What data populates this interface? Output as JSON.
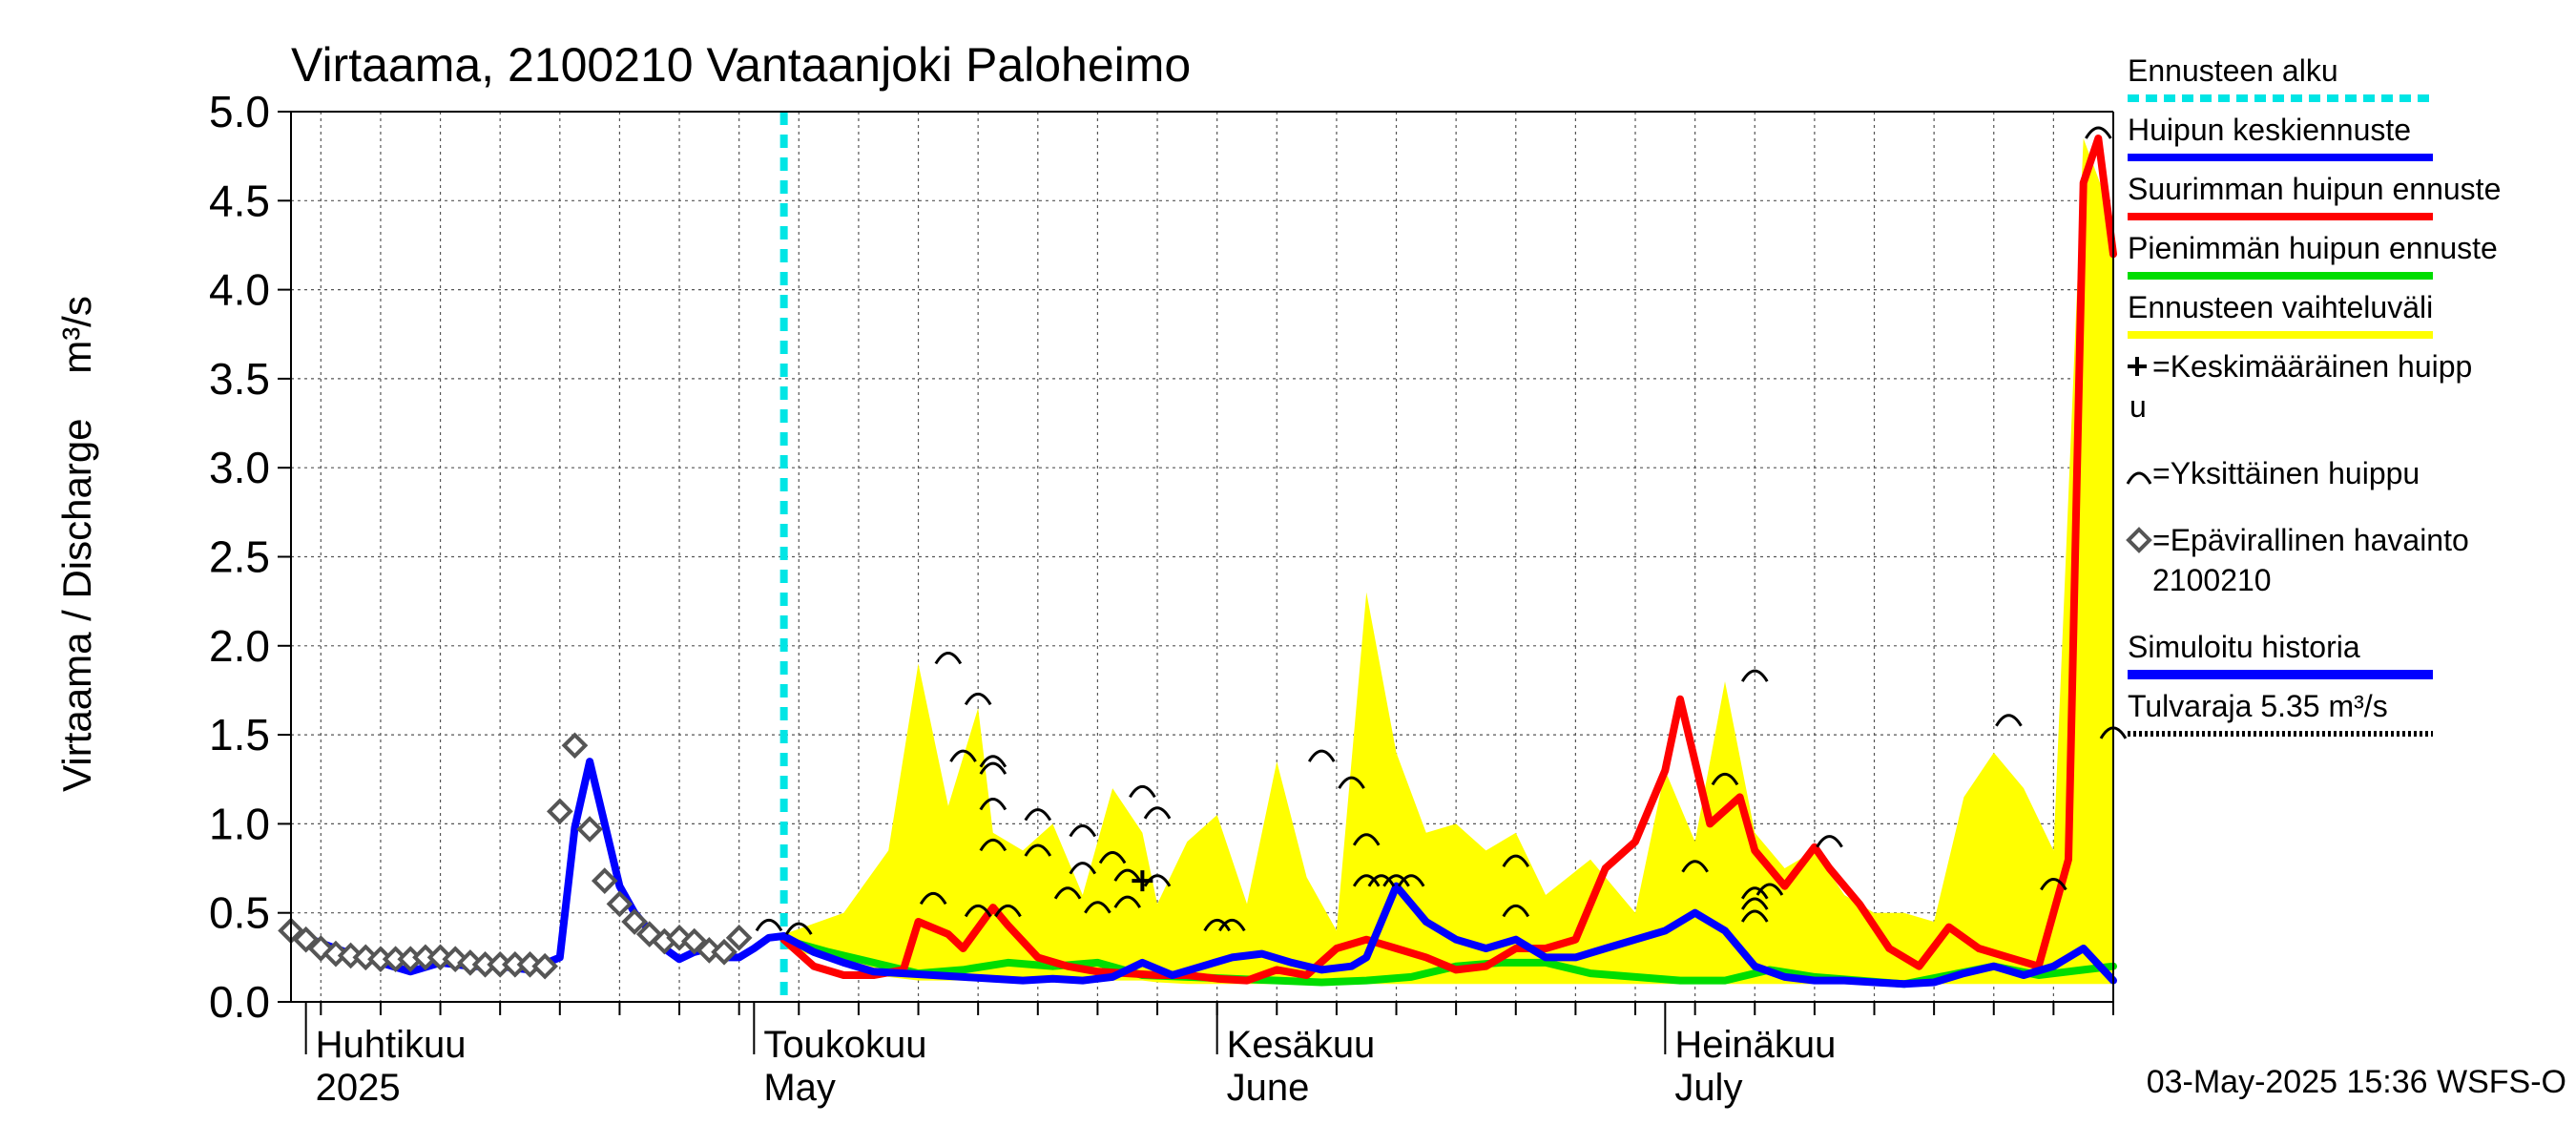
{
  "chart_data": {
    "type": "line",
    "title": "Virtaama, 2100210 Vantaanjoki Paloheimo",
    "ylabel": "Virtaama / Discharge    m³/s",
    "ylim": [
      0,
      5.0
    ],
    "yticks": [
      "0.0",
      "0.5",
      "1.0",
      "1.5",
      "2.0",
      "2.5",
      "3.0",
      "3.5",
      "4.0",
      "4.5",
      "5.0"
    ],
    "x_range": [
      "2025-03-31",
      "2025-07-31"
    ],
    "months": [
      {
        "line1": "Huhtikuu",
        "line2": "2025",
        "date": "2025-04-01"
      },
      {
        "line1": "Toukokuu",
        "line2": "May",
        "date": "2025-05-01"
      },
      {
        "line1": "Kesäkuu",
        "line2": "June",
        "date": "2025-06-01"
      },
      {
        "line1": "Heinäkuu",
        "line2": "July",
        "date": "2025-07-01"
      }
    ],
    "forecast_start": "2025-05-03",
    "footer": "03-May-2025 15:36 WSFS-O",
    "colors": {
      "forecast_start": "#00e5e5",
      "mean_peak": "#0000ff",
      "max_peak": "#ff0000",
      "min_peak": "#00dd00",
      "range": "#ffff00",
      "history": "#0000ff",
      "flood": "#000000"
    },
    "legend": [
      {
        "key": "forecast_start",
        "label": "Ennusteen alku",
        "style": "dashed-cyan"
      },
      {
        "key": "mean_peak",
        "label": "Huipun keskiennuste",
        "style": "line-blue"
      },
      {
        "key": "max_peak",
        "label": "Suurimman huipun ennuste",
        "style": "line-red"
      },
      {
        "key": "min_peak",
        "label": "Pienimmän huipun ennuste",
        "style": "line-green"
      },
      {
        "key": "range",
        "label": "Ennusteen vaihteluväli",
        "style": "line-yellow"
      },
      {
        "key": "mean_marker",
        "label": "=Keskimääräinen huipp",
        "label2": "u",
        "style": "plus"
      },
      {
        "key": "single_peak",
        "label": "=Yksittäinen huippu",
        "style": "arc"
      },
      {
        "key": "observed",
        "label": "=Epävirallinen havainto",
        "label2": "2100210",
        "style": "diamond"
      },
      {
        "key": "history",
        "label": "Simuloitu historia",
        "style": "line-blue-thick"
      },
      {
        "key": "flood",
        "label": "Tulvaraja 5.35 m³/s",
        "style": "dotted"
      }
    ],
    "series": [
      {
        "name": "Epävirallinen havainto 2100210",
        "type": "markers",
        "x": [
          "2025-03-31",
          "2025-04-01",
          "2025-04-02",
          "2025-04-03",
          "2025-04-04",
          "2025-04-05",
          "2025-04-06",
          "2025-04-07",
          "2025-04-08",
          "2025-04-09",
          "2025-04-10",
          "2025-04-11",
          "2025-04-12",
          "2025-04-13",
          "2025-04-14",
          "2025-04-15",
          "2025-04-16",
          "2025-04-17",
          "2025-04-18",
          "2025-04-19",
          "2025-04-20",
          "2025-04-21",
          "2025-04-22",
          "2025-04-23",
          "2025-04-24",
          "2025-04-25",
          "2025-04-26",
          "2025-04-27",
          "2025-04-28",
          "2025-04-29",
          "2025-04-30"
        ],
        "y": [
          0.4,
          0.35,
          0.3,
          0.27,
          0.26,
          0.25,
          0.24,
          0.24,
          0.24,
          0.25,
          0.25,
          0.24,
          0.22,
          0.21,
          0.21,
          0.21,
          0.21,
          0.2,
          1.07,
          1.44,
          0.97,
          0.68,
          0.55,
          0.45,
          0.38,
          0.34,
          0.36,
          0.34,
          0.29,
          0.28,
          0.36
        ]
      },
      {
        "name": "Simuloitu historia",
        "x": [
          "2025-03-31",
          "2025-04-02",
          "2025-04-04",
          "2025-04-06",
          "2025-04-08",
          "2025-04-10",
          "2025-04-12",
          "2025-04-14",
          "2025-04-16",
          "2025-04-18",
          "2025-04-19",
          "2025-04-20",
          "2025-04-21",
          "2025-04-22",
          "2025-04-23",
          "2025-04-24",
          "2025-04-25",
          "2025-04-26",
          "2025-04-27",
          "2025-04-28",
          "2025-04-29",
          "2025-04-30",
          "2025-05-01",
          "2025-05-02",
          "2025-05-03"
        ],
        "y": [
          0.4,
          0.33,
          0.27,
          0.22,
          0.17,
          0.22,
          0.2,
          0.2,
          0.18,
          0.25,
          0.98,
          1.35,
          1.0,
          0.65,
          0.5,
          0.4,
          0.3,
          0.24,
          0.28,
          0.3,
          0.25,
          0.25,
          0.3,
          0.36,
          0.37
        ]
      },
      {
        "name": "Suurimman huipun ennuste",
        "x": [
          "2025-05-03",
          "2025-05-05",
          "2025-05-07",
          "2025-05-09",
          "2025-05-11",
          "2025-05-12",
          "2025-05-14",
          "2025-05-15",
          "2025-05-17",
          "2025-05-18",
          "2025-05-20",
          "2025-05-22",
          "2025-05-24",
          "2025-05-26",
          "2025-05-28",
          "2025-05-30",
          "2025-06-01",
          "2025-06-03",
          "2025-06-05",
          "2025-06-07",
          "2025-06-09",
          "2025-06-11",
          "2025-06-13",
          "2025-06-15",
          "2025-06-17",
          "2025-06-19",
          "2025-06-21",
          "2025-06-23",
          "2025-06-25",
          "2025-06-27",
          "2025-06-29",
          "2025-07-01",
          "2025-07-02",
          "2025-07-04",
          "2025-07-06",
          "2025-07-07",
          "2025-07-09",
          "2025-07-11",
          "2025-07-12",
          "2025-07-14",
          "2025-07-16",
          "2025-07-18",
          "2025-07-20",
          "2025-07-22",
          "2025-07-24",
          "2025-07-26",
          "2025-07-28",
          "2025-07-29",
          "2025-07-30",
          "2025-07-31"
        ],
        "y": [
          0.35,
          0.2,
          0.15,
          0.15,
          0.18,
          0.45,
          0.38,
          0.3,
          0.53,
          0.43,
          0.25,
          0.2,
          0.17,
          0.16,
          0.15,
          0.15,
          0.13,
          0.12,
          0.18,
          0.15,
          0.3,
          0.35,
          0.3,
          0.25,
          0.18,
          0.2,
          0.3,
          0.3,
          0.35,
          0.75,
          0.9,
          1.3,
          1.7,
          1.0,
          1.15,
          0.85,
          0.65,
          0.87,
          0.75,
          0.55,
          0.3,
          0.2,
          0.42,
          0.3,
          0.25,
          0.2,
          0.8,
          4.6,
          4.85,
          4.2
        ]
      },
      {
        "name": "Pienimmän huipun ennuste",
        "x": [
          "2025-05-03",
          "2025-05-06",
          "2025-05-09",
          "2025-05-12",
          "2025-05-15",
          "2025-05-18",
          "2025-05-21",
          "2025-05-24",
          "2025-05-27",
          "2025-05-30",
          "2025-06-02",
          "2025-06-05",
          "2025-06-08",
          "2025-06-11",
          "2025-06-14",
          "2025-06-17",
          "2025-06-20",
          "2025-06-23",
          "2025-06-26",
          "2025-06-29",
          "2025-07-02",
          "2025-07-05",
          "2025-07-08",
          "2025-07-11",
          "2025-07-14",
          "2025-07-17",
          "2025-07-20",
          "2025-07-23",
          "2025-07-26",
          "2025-07-29",
          "2025-07-31"
        ],
        "y": [
          0.35,
          0.28,
          0.22,
          0.16,
          0.18,
          0.22,
          0.2,
          0.22,
          0.15,
          0.14,
          0.13,
          0.12,
          0.11,
          0.12,
          0.14,
          0.2,
          0.22,
          0.22,
          0.16,
          0.14,
          0.12,
          0.12,
          0.18,
          0.14,
          0.12,
          0.1,
          0.15,
          0.2,
          0.15,
          0.18,
          0.2
        ]
      },
      {
        "name": "Huipun keskiennuste",
        "x": [
          "2025-05-03",
          "2025-05-05",
          "2025-05-07",
          "2025-05-09",
          "2025-05-11",
          "2025-05-13",
          "2025-05-15",
          "2025-05-17",
          "2025-05-19",
          "2025-05-21",
          "2025-05-23",
          "2025-05-25",
          "2025-05-27",
          "2025-05-29",
          "2025-05-31",
          "2025-06-02",
          "2025-06-04",
          "2025-06-06",
          "2025-06-08",
          "2025-06-10",
          "2025-06-11",
          "2025-06-13",
          "2025-06-15",
          "2025-06-17",
          "2025-06-19",
          "2025-06-21",
          "2025-06-23",
          "2025-06-25",
          "2025-06-27",
          "2025-06-29",
          "2025-07-01",
          "2025-07-03",
          "2025-07-05",
          "2025-07-07",
          "2025-07-09",
          "2025-07-11",
          "2025-07-13",
          "2025-07-15",
          "2025-07-17",
          "2025-07-19",
          "2025-07-21",
          "2025-07-23",
          "2025-07-25",
          "2025-07-27",
          "2025-07-29",
          "2025-07-31"
        ],
        "y": [
          0.37,
          0.28,
          0.22,
          0.17,
          0.16,
          0.15,
          0.14,
          0.13,
          0.12,
          0.13,
          0.12,
          0.14,
          0.22,
          0.15,
          0.2,
          0.25,
          0.27,
          0.22,
          0.18,
          0.2,
          0.25,
          0.65,
          0.45,
          0.35,
          0.3,
          0.35,
          0.25,
          0.25,
          0.3,
          0.35,
          0.4,
          0.5,
          0.4,
          0.2,
          0.14,
          0.12,
          0.12,
          0.11,
          0.1,
          0.11,
          0.16,
          0.2,
          0.15,
          0.2,
          0.3,
          0.12
        ]
      },
      {
        "name": "Ennusteen vaihteluväli",
        "type": "band",
        "x": [
          "2025-05-03",
          "2025-05-07",
          "2025-05-10",
          "2025-05-12",
          "2025-05-14",
          "2025-05-16",
          "2025-05-17",
          "2025-05-19",
          "2025-05-21",
          "2025-05-23",
          "2025-05-25",
          "2025-05-27",
          "2025-05-28",
          "2025-05-30",
          "2025-06-01",
          "2025-06-03",
          "2025-06-05",
          "2025-06-07",
          "2025-06-09",
          "2025-06-11",
          "2025-06-13",
          "2025-06-15",
          "2025-06-17",
          "2025-06-19",
          "2025-06-21",
          "2025-06-23",
          "2025-06-26",
          "2025-06-29",
          "2025-07-01",
          "2025-07-03",
          "2025-07-05",
          "2025-07-07",
          "2025-07-09",
          "2025-07-11",
          "2025-07-13",
          "2025-07-15",
          "2025-07-17",
          "2025-07-19",
          "2025-07-21",
          "2025-07-23",
          "2025-07-25",
          "2025-07-27",
          "2025-07-29",
          "2025-07-31"
        ],
        "upper": [
          0.38,
          0.5,
          0.85,
          1.9,
          1.1,
          1.65,
          0.95,
          0.85,
          1.0,
          0.6,
          1.2,
          0.95,
          0.55,
          0.9,
          1.05,
          0.55,
          1.35,
          0.7,
          0.4,
          2.3,
          1.4,
          0.95,
          1.0,
          0.85,
          0.95,
          0.6,
          0.8,
          0.5,
          1.3,
          0.9,
          1.8,
          0.95,
          0.75,
          0.85,
          0.6,
          0.5,
          0.5,
          0.45,
          1.15,
          1.4,
          1.2,
          0.85,
          4.85,
          4.4
        ],
        "lower": [
          0.3,
          0.22,
          0.14,
          0.12,
          0.12,
          0.12,
          0.12,
          0.12,
          0.12,
          0.12,
          0.12,
          0.12,
          0.11,
          0.1,
          0.1,
          0.1,
          0.1,
          0.1,
          0.1,
          0.1,
          0.1,
          0.1,
          0.1,
          0.1,
          0.1,
          0.1,
          0.1,
          0.1,
          0.1,
          0.1,
          0.1,
          0.1,
          0.1,
          0.1,
          0.1,
          0.1,
          0.1,
          0.1,
          0.1,
          0.1,
          0.1,
          0.1,
          0.1,
          0.1
        ]
      },
      {
        "name": "Yksittäinen huippu",
        "type": "arcs",
        "x": [
          "2025-05-02",
          "2025-05-04",
          "2025-05-14",
          "2025-05-15",
          "2025-05-16",
          "2025-05-13",
          "2025-05-17",
          "2025-05-17",
          "2025-05-17",
          "2025-05-17",
          "2025-05-16",
          "2025-05-18",
          "2025-05-20",
          "2025-05-20",
          "2025-05-22",
          "2025-05-23",
          "2025-05-23",
          "2025-05-24",
          "2025-05-25",
          "2025-05-26",
          "2025-05-26",
          "2025-05-27",
          "2025-05-28",
          "2025-05-28",
          "2025-06-01",
          "2025-06-02",
          "2025-06-08",
          "2025-06-10",
          "2025-06-11",
          "2025-06-11",
          "2025-06-12",
          "2025-06-13",
          "2025-06-14",
          "2025-06-21",
          "2025-06-21",
          "2025-07-03",
          "2025-07-05",
          "2025-07-07",
          "2025-07-07",
          "2025-07-07",
          "2025-07-07",
          "2025-07-08",
          "2025-07-12",
          "2025-07-24",
          "2025-07-27",
          "2025-07-30",
          "2025-07-31"
        ],
        "y": [
          0.4,
          0.38,
          1.9,
          1.35,
          1.67,
          0.55,
          1.32,
          1.28,
          1.08,
          0.85,
          0.48,
          0.48,
          1.02,
          0.82,
          0.58,
          0.93,
          0.72,
          0.5,
          0.78,
          0.53,
          0.68,
          1.15,
          0.65,
          1.03,
          0.4,
          0.4,
          1.35,
          1.2,
          0.88,
          0.65,
          0.65,
          0.65,
          0.65,
          0.76,
          0.48,
          0.73,
          1.22,
          1.8,
          0.58,
          0.52,
          0.45,
          0.6,
          0.87,
          1.55,
          0.63,
          4.85,
          1.48
        ]
      },
      {
        "name": "Keskimääräinen huippu",
        "type": "plus",
        "x": [
          "2025-05-27"
        ],
        "y": [
          0.68
        ]
      }
    ]
  }
}
